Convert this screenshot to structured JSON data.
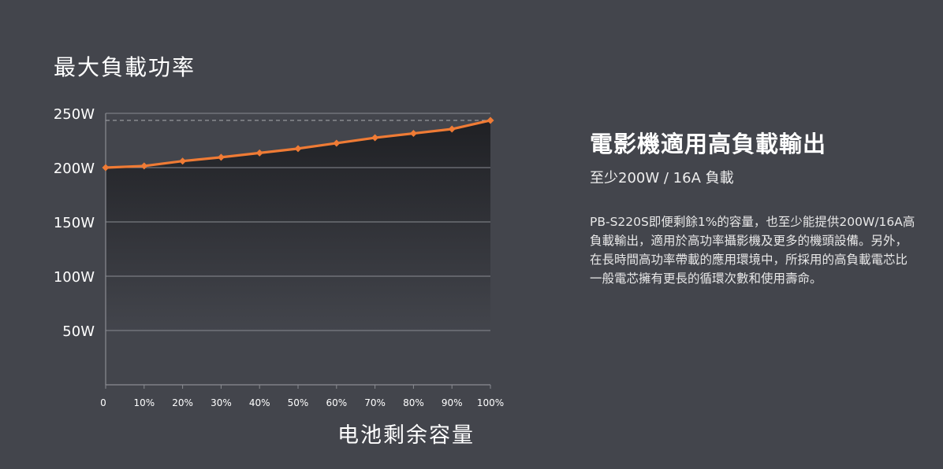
{
  "chart_data": {
    "type": "line",
    "title": "最大負載功率",
    "xlabel": "电池剩余容量",
    "ylabel": "",
    "x": [
      0,
      10,
      20,
      30,
      40,
      50,
      60,
      70,
      80,
      90,
      100
    ],
    "x_tick_labels": [
      "0",
      "10%",
      "20%",
      "30%",
      "40%",
      "50%",
      "60%",
      "70%",
      "80%",
      "90%",
      "100%"
    ],
    "y_tick_values": [
      50,
      100,
      150,
      200,
      250
    ],
    "y_tick_labels": [
      "50W",
      "100W",
      "150W",
      "200W",
      "250W"
    ],
    "series": [
      {
        "values": [
          200,
          201.5,
          206,
          209.5,
          213.5,
          217.5,
          222.5,
          227.5,
          231.5,
          235.5,
          243.5
        ]
      }
    ],
    "reference_line": 243.5,
    "xlim": [
      0,
      100
    ],
    "ylim": [
      0,
      250
    ],
    "grid": true,
    "colors": {
      "line": "#ef7b35",
      "grid": "#8a8c92",
      "axis": "#8a8c92",
      "reference": "#a8aab0"
    }
  },
  "panel": {
    "title": "電影機適用高負載輸出",
    "subtitle": "至少200W / 16A 負載",
    "body": "PB-S220S即便剩餘1%的容量，也至少能提供200W/16A高負載輸出，適用於高功率攝影機及更多的機頭設備。另外，在長時間高功率帶載的應用環境中，所採用的高負載電芯比一般電芯擁有更長的循環次數和使用壽命。"
  }
}
